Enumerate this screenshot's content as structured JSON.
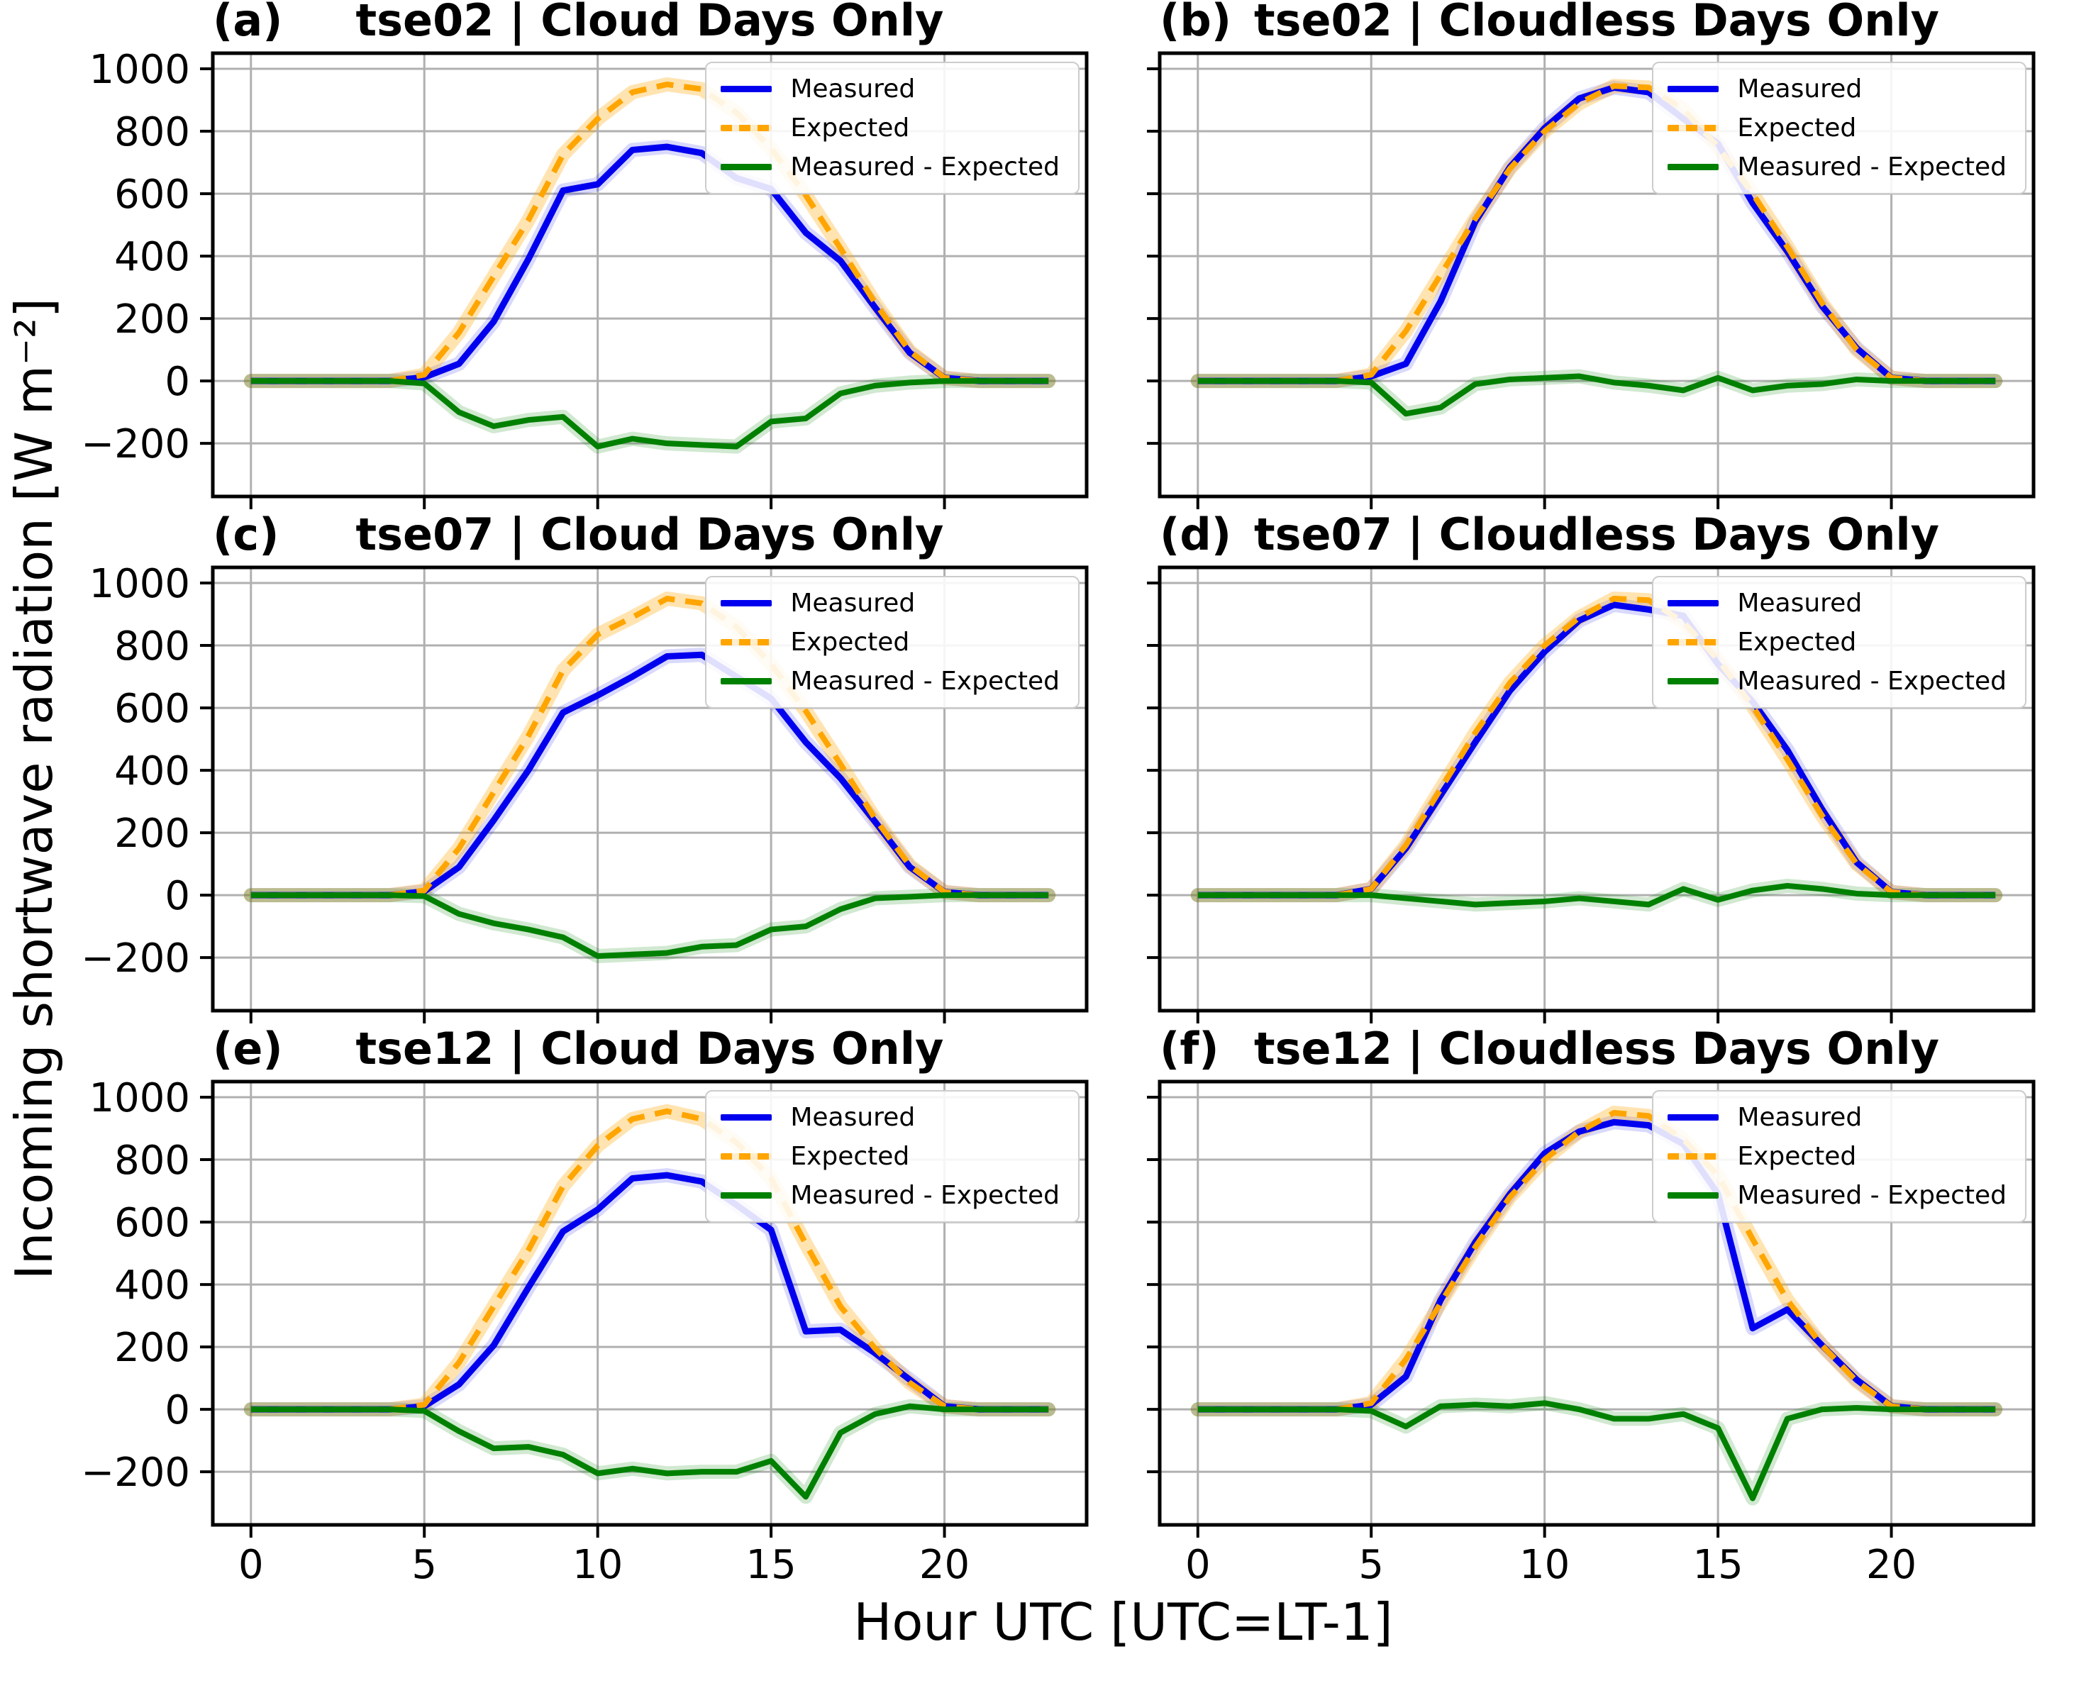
{
  "figure": {
    "ylabel": "Incoming shortwave radiation [W m⁻²]",
    "xlabel": "Hour UTC [UTC=LT-1]",
    "background": "#ffffff"
  },
  "style": {
    "grid_color": "#b0b0b0",
    "spine_color": "#000000",
    "measured_color": "#0000ee",
    "expected_color": "#ffa500",
    "diff_color": "#008000",
    "legend_border_color": "#cccccc"
  },
  "legend": {
    "position": "upper right",
    "entries": [
      {
        "label": "Measured",
        "color": "#0000ee",
        "style": "solid"
      },
      {
        "label": "Expected",
        "color": "#ffa500",
        "style": "dashed"
      },
      {
        "label": "Measured - Expected",
        "color": "#008000",
        "style": "solid"
      }
    ]
  },
  "axes": {
    "x_ticks": [
      0,
      5,
      10,
      15,
      20
    ],
    "y_ticks": [
      -200,
      0,
      200,
      400,
      600,
      800,
      1000
    ],
    "x_range": [
      -1.1,
      24.1
    ],
    "y_range": [
      -370,
      1050
    ],
    "grid": true
  },
  "chart_data": [
    {
      "panel_label": "(a)",
      "title": "tse02 | Cloud Days Only",
      "type": "line",
      "xlabel": "Hour UTC [UTC=LT-1]",
      "ylabel": "Incoming shortwave radiation [W m⁻²]",
      "show_x_ticklabels": false,
      "show_y_ticklabels": true,
      "x": [
        0,
        1,
        2,
        3,
        4,
        5,
        6,
        7,
        8,
        9,
        10,
        11,
        12,
        13,
        14,
        15,
        16,
        17,
        18,
        19,
        20,
        21,
        22,
        23
      ],
      "series": [
        {
          "name": "Measured",
          "color": "#0000ee",
          "band": "rgba(0,0,238,0.15)",
          "width": 9,
          "dash": null,
          "values": [
            0,
            0,
            0,
            0,
            0,
            12,
            55,
            190,
            390,
            610,
            630,
            740,
            750,
            730,
            650,
            615,
            475,
            385,
            235,
            90,
            10,
            0,
            0,
            0
          ]
        },
        {
          "name": "Expected",
          "color": "#ffa500",
          "band": "rgba(255,165,0,0.30)",
          "width": 8,
          "dash": "24 15",
          "values": [
            0,
            0,
            0,
            0,
            0,
            20,
            155,
            335,
            515,
            725,
            840,
            925,
            950,
            935,
            860,
            745,
            595,
            425,
            250,
            95,
            10,
            0,
            0,
            0
          ]
        },
        {
          "name": "Measured - Expected",
          "color": "#008000",
          "band": "rgba(0,128,0,0.18)",
          "width": 8,
          "dash": null,
          "values": [
            0,
            0,
            0,
            0,
            0,
            -8,
            -100,
            -145,
            -125,
            -115,
            -210,
            -185,
            -200,
            -205,
            -210,
            -130,
            -120,
            -40,
            -15,
            -5,
            0,
            0,
            0,
            0
          ]
        }
      ]
    },
    {
      "panel_label": "(b)",
      "title": "tse02 | Cloudless Days Only",
      "type": "line",
      "show_x_ticklabels": false,
      "show_y_ticklabels": false,
      "x": [
        0,
        1,
        2,
        3,
        4,
        5,
        6,
        7,
        8,
        9,
        10,
        11,
        12,
        13,
        14,
        15,
        16,
        17,
        18,
        19,
        20,
        21,
        22,
        23
      ],
      "series": [
        {
          "name": "Measured",
          "color": "#0000ee",
          "band": "rgba(0,0,238,0.15)",
          "width": 9,
          "dash": null,
          "values": [
            0,
            0,
            0,
            0,
            0,
            15,
            55,
            255,
            510,
            685,
            810,
            905,
            940,
            925,
            840,
            760,
            570,
            415,
            240,
            105,
            10,
            0,
            0,
            0
          ]
        },
        {
          "name": "Expected",
          "color": "#ffa500",
          "band": "rgba(255,165,0,0.30)",
          "width": 8,
          "dash": "24 15",
          "values": [
            0,
            0,
            0,
            0,
            0,
            20,
            160,
            340,
            520,
            680,
            800,
            890,
            945,
            940,
            870,
            750,
            600,
            430,
            250,
            100,
            10,
            0,
            0,
            0
          ]
        },
        {
          "name": "Measured - Expected",
          "color": "#008000",
          "band": "rgba(0,128,0,0.18)",
          "width": 8,
          "dash": null,
          "values": [
            0,
            0,
            0,
            0,
            0,
            -5,
            -105,
            -85,
            -10,
            5,
            10,
            15,
            -5,
            -15,
            -30,
            10,
            -30,
            -15,
            -10,
            5,
            0,
            0,
            0,
            0
          ]
        }
      ]
    },
    {
      "panel_label": "(c)",
      "title": "tse07 | Cloud Days Only",
      "type": "line",
      "show_x_ticklabels": false,
      "show_y_ticklabels": true,
      "x": [
        0,
        1,
        2,
        3,
        4,
        5,
        6,
        7,
        8,
        9,
        10,
        11,
        12,
        13,
        14,
        15,
        16,
        17,
        18,
        19,
        20,
        21,
        22,
        23
      ],
      "series": [
        {
          "name": "Measured",
          "color": "#0000ee",
          "band": "rgba(0,0,238,0.15)",
          "width": 9,
          "dash": null,
          "values": [
            0,
            0,
            0,
            0,
            0,
            12,
            90,
            240,
            400,
            585,
            640,
            700,
            765,
            770,
            700,
            630,
            490,
            375,
            235,
            90,
            10,
            0,
            0,
            0
          ]
        },
        {
          "name": "Expected",
          "color": "#ffa500",
          "band": "rgba(255,165,0,0.30)",
          "width": 8,
          "dash": "24 15",
          "values": [
            0,
            0,
            0,
            0,
            0,
            15,
            150,
            330,
            510,
            720,
            835,
            890,
            950,
            935,
            860,
            740,
            590,
            420,
            245,
            95,
            10,
            0,
            0,
            0
          ]
        },
        {
          "name": "Measured - Expected",
          "color": "#008000",
          "band": "rgba(0,128,0,0.18)",
          "width": 8,
          "dash": null,
          "values": [
            0,
            0,
            0,
            0,
            0,
            -3,
            -60,
            -90,
            -110,
            -135,
            -195,
            -190,
            -185,
            -165,
            -160,
            -110,
            -100,
            -45,
            -10,
            -5,
            0,
            0,
            0,
            0
          ]
        }
      ]
    },
    {
      "panel_label": "(d)",
      "title": "tse07 | Cloudless Days Only",
      "type": "line",
      "show_x_ticklabels": false,
      "show_y_ticklabels": false,
      "x": [
        0,
        1,
        2,
        3,
        4,
        5,
        6,
        7,
        8,
        9,
        10,
        11,
        12,
        13,
        14,
        15,
        16,
        17,
        18,
        19,
        20,
        21,
        22,
        23
      ],
      "series": [
        {
          "name": "Measured",
          "color": "#0000ee",
          "band": "rgba(0,0,238,0.15)",
          "width": 9,
          "dash": null,
          "values": [
            0,
            0,
            0,
            0,
            0,
            20,
            150,
            320,
            490,
            655,
            780,
            880,
            930,
            915,
            895,
            740,
            620,
            465,
            275,
            105,
            10,
            0,
            0,
            0
          ]
        },
        {
          "name": "Expected",
          "color": "#ffa500",
          "band": "rgba(255,165,0,0.30)",
          "width": 8,
          "dash": "24 15",
          "values": [
            0,
            0,
            0,
            0,
            0,
            20,
            160,
            340,
            520,
            680,
            800,
            890,
            950,
            945,
            875,
            755,
            605,
            435,
            255,
            100,
            10,
            0,
            0,
            0
          ]
        },
        {
          "name": "Measured - Expected",
          "color": "#008000",
          "band": "rgba(0,128,0,0.18)",
          "width": 8,
          "dash": null,
          "values": [
            0,
            0,
            0,
            0,
            0,
            0,
            -10,
            -20,
            -30,
            -25,
            -20,
            -10,
            -20,
            -30,
            20,
            -15,
            15,
            30,
            20,
            5,
            0,
            0,
            0,
            0
          ]
        }
      ]
    },
    {
      "panel_label": "(e)",
      "title": "tse12 | Cloud Days Only",
      "type": "line",
      "show_x_ticklabels": true,
      "show_y_ticklabels": true,
      "x": [
        0,
        1,
        2,
        3,
        4,
        5,
        6,
        7,
        8,
        9,
        10,
        11,
        12,
        13,
        14,
        15,
        16,
        17,
        18,
        19,
        20,
        21,
        22,
        23
      ],
      "series": [
        {
          "name": "Measured",
          "color": "#0000ee",
          "band": "rgba(0,0,238,0.15)",
          "width": 9,
          "dash": null,
          "values": [
            0,
            0,
            0,
            0,
            0,
            10,
            80,
            205,
            390,
            570,
            640,
            740,
            750,
            730,
            655,
            575,
            250,
            255,
            180,
            95,
            10,
            0,
            0,
            0
          ]
        },
        {
          "name": "Expected",
          "color": "#ffa500",
          "band": "rgba(255,165,0,0.30)",
          "width": 8,
          "dash": "24 15",
          "values": [
            0,
            0,
            0,
            0,
            0,
            15,
            150,
            330,
            510,
            715,
            845,
            930,
            955,
            930,
            855,
            740,
            530,
            330,
            195,
            85,
            10,
            0,
            0,
            0
          ]
        },
        {
          "name": "Measured - Expected",
          "color": "#008000",
          "band": "rgba(0,128,0,0.18)",
          "width": 8,
          "dash": null,
          "values": [
            0,
            0,
            0,
            0,
            0,
            -5,
            -70,
            -125,
            -120,
            -145,
            -205,
            -190,
            -205,
            -200,
            -200,
            -165,
            -280,
            -75,
            -15,
            10,
            0,
            0,
            0,
            0
          ]
        }
      ]
    },
    {
      "panel_label": "(f)",
      "title": "tse12 | Cloudless Days Only",
      "type": "line",
      "show_x_ticklabels": true,
      "show_y_ticklabels": false,
      "x": [
        0,
        1,
        2,
        3,
        4,
        5,
        6,
        7,
        8,
        9,
        10,
        11,
        12,
        13,
        14,
        15,
        16,
        17,
        18,
        19,
        20,
        21,
        22,
        23
      ],
      "series": [
        {
          "name": "Measured",
          "color": "#0000ee",
          "band": "rgba(0,0,238,0.15)",
          "width": 9,
          "dash": null,
          "values": [
            0,
            0,
            0,
            0,
            0,
            15,
            105,
            350,
            535,
            690,
            820,
            890,
            920,
            910,
            850,
            690,
            260,
            320,
            205,
            95,
            10,
            0,
            0,
            0
          ]
        },
        {
          "name": "Expected",
          "color": "#ffa500",
          "band": "rgba(255,165,0,0.30)",
          "width": 8,
          "dash": "24 15",
          "values": [
            0,
            0,
            0,
            0,
            0,
            20,
            160,
            340,
            520,
            680,
            800,
            890,
            950,
            940,
            865,
            750,
            545,
            350,
            205,
            90,
            10,
            0,
            0,
            0
          ]
        },
        {
          "name": "Measured - Expected",
          "color": "#008000",
          "band": "rgba(0,128,0,0.18)",
          "width": 8,
          "dash": null,
          "values": [
            0,
            0,
            0,
            0,
            0,
            -5,
            -55,
            10,
            15,
            10,
            20,
            0,
            -30,
            -30,
            -15,
            -60,
            -285,
            -30,
            0,
            5,
            0,
            0,
            0,
            0
          ]
        }
      ]
    }
  ]
}
